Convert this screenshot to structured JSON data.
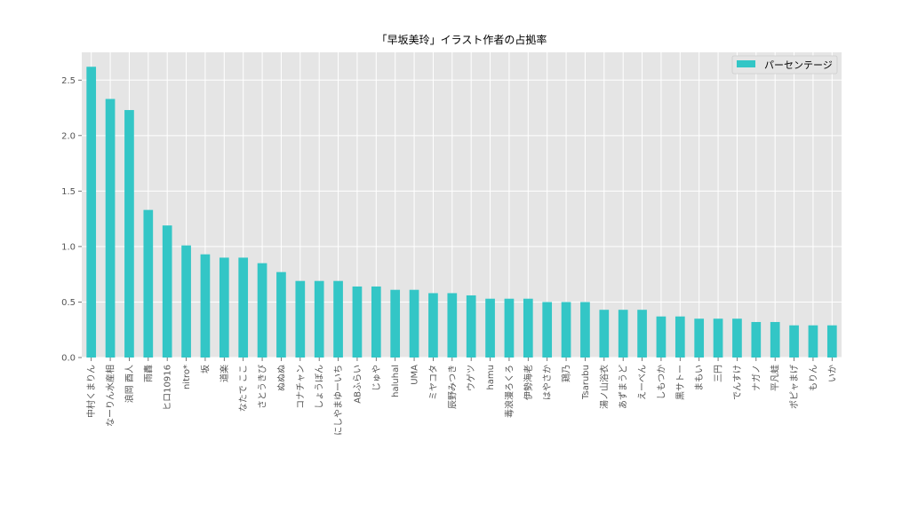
{
  "chart_data": {
    "type": "bar",
    "title": "「早坂美玲」イラスト作者の占拠率",
    "xlabel": "",
    "ylabel": "",
    "ylim": [
      0,
      2.75
    ],
    "yticks": [
      0.0,
      0.5,
      1.0,
      1.5,
      2.0,
      2.5
    ],
    "ytick_labels": [
      "0.0",
      "0.5",
      "1.0",
      "1.5",
      "2.0",
      "2.5"
    ],
    "grid": true,
    "legend_position": "top-right",
    "bar_color": "#33c6c6",
    "background_color": "#e5e5e5",
    "categories": [
      "中村くまりん",
      "なーりん水産相",
      "浪岡 酉人",
      "雨轟",
      "ヒロ10916",
      "nitro*",
      "坂",
      "道楽",
      "なたで ここ",
      "さとうきび",
      "ぬぬぬ",
      "コナチャン",
      "しょうぼん",
      "にしやまゆーいち",
      "ABふらい",
      "じゅや",
      "haluhal",
      "UMA",
      "ミヤコタ",
      "辰野みつき",
      "ウゲツ",
      "hamu",
      "毒浪漫ろくろ",
      "伊勢海老",
      "はやさか",
      "鶏乃",
      "Tsarubu",
      "湯ノ山浴衣",
      "あずまうど",
      "えーべん",
      "しもつか",
      "黒サトー",
      "まもい",
      "三円",
      "でんすけ",
      "ナガノ",
      "平凡蛙",
      "ポピャまげ",
      "もりん",
      "いか"
    ],
    "series": [
      {
        "name": "パーセンテージ",
        "values": [
          2.62,
          2.33,
          2.23,
          1.33,
          1.19,
          1.01,
          0.93,
          0.9,
          0.9,
          0.85,
          0.77,
          0.69,
          0.69,
          0.69,
          0.64,
          0.64,
          0.61,
          0.61,
          0.58,
          0.58,
          0.56,
          0.53,
          0.53,
          0.53,
          0.5,
          0.5,
          0.5,
          0.43,
          0.43,
          0.43,
          0.37,
          0.37,
          0.35,
          0.35,
          0.35,
          0.32,
          0.32,
          0.29,
          0.29,
          0.29
        ]
      }
    ]
  }
}
